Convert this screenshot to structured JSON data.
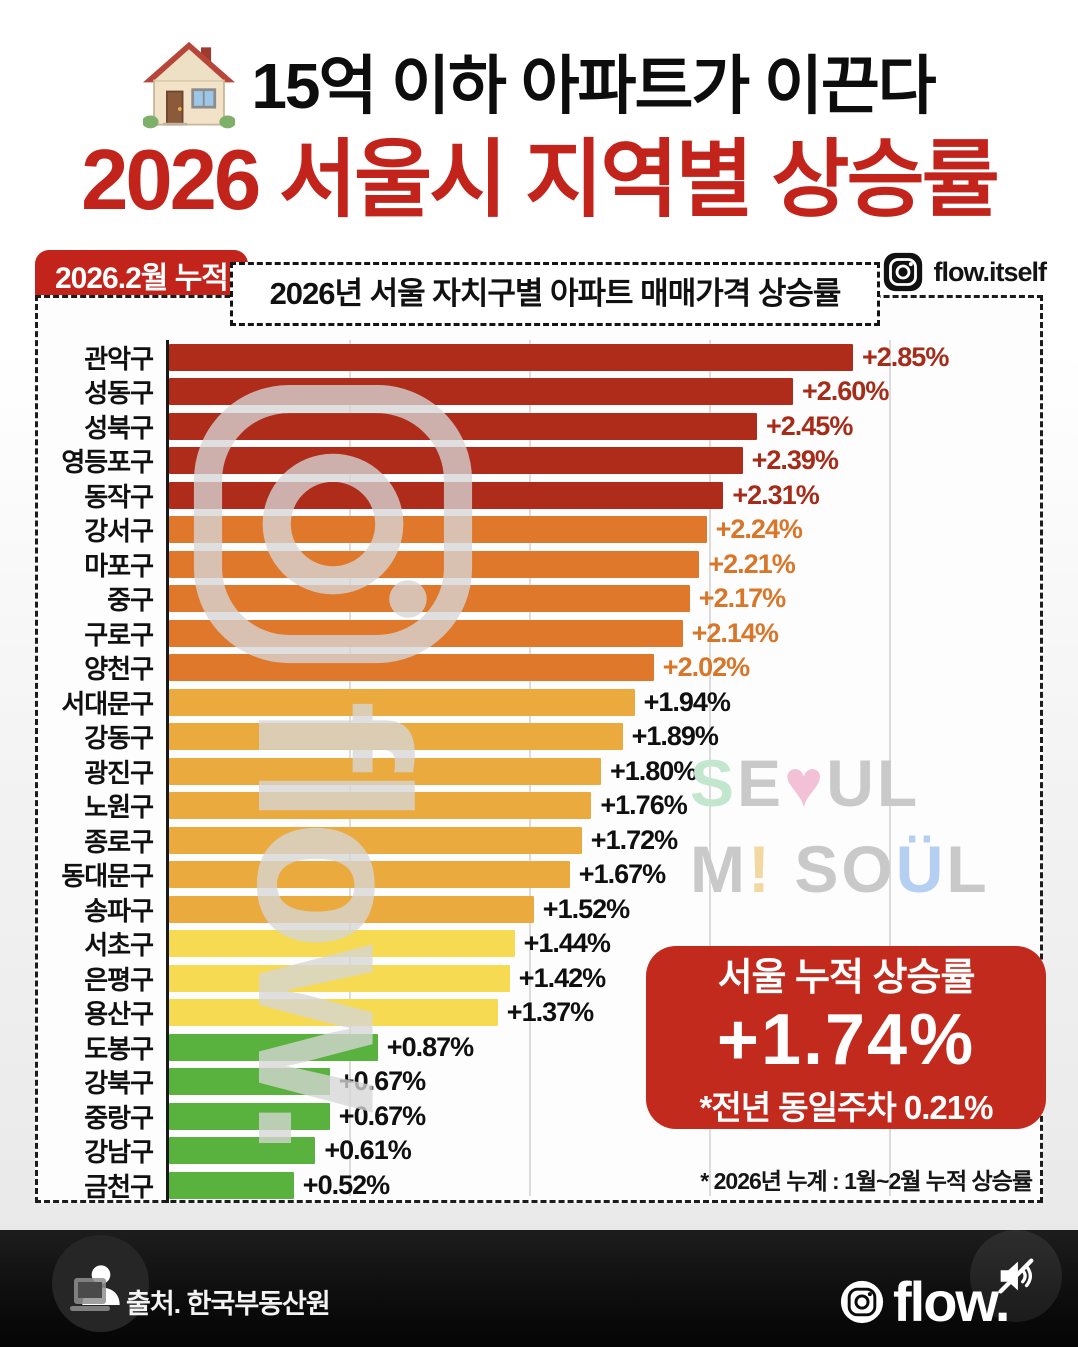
{
  "page": {
    "header_line1": "15억 이하 아파트가 이끈다",
    "header_line2": "2026 서울시 지역별 상승률",
    "badge": "2026.2월 누적",
    "instagram_handle": "flow.itself"
  },
  "chart_data": {
    "type": "bar",
    "orientation": "horizontal",
    "title": "2026년 서울 자치구별 아파트 매매가격 상승률",
    "unit": "%",
    "xlim": [
      0,
      3.65
    ],
    "gridlines": [
      0.75,
      1.5,
      2.25,
      3.0
    ],
    "footnote": "* 2026년 누계 :  1월~2월 누적 상승률",
    "rows": [
      {
        "label": "관악구",
        "value": 2.85,
        "display": "+2.85%",
        "bar_color": "dark_red",
        "value_color": "dark_red_text"
      },
      {
        "label": "성동구",
        "value": 2.6,
        "display": "+2.60%",
        "bar_color": "dark_red",
        "value_color": "dark_red_text"
      },
      {
        "label": "성북구",
        "value": 2.45,
        "display": "+2.45%",
        "bar_color": "dark_red",
        "value_color": "dark_red_text"
      },
      {
        "label": "영등포구",
        "value": 2.39,
        "display": "+2.39%",
        "bar_color": "dark_red",
        "value_color": "dark_red_text"
      },
      {
        "label": "동작구",
        "value": 2.31,
        "display": "+2.31%",
        "bar_color": "dark_red",
        "value_color": "dark_red_text"
      },
      {
        "label": "강서구",
        "value": 2.24,
        "display": "+2.24%",
        "bar_color": "orange",
        "value_color": "orange_text"
      },
      {
        "label": "마포구",
        "value": 2.21,
        "display": "+2.21%",
        "bar_color": "orange",
        "value_color": "orange_text"
      },
      {
        "label": "중구",
        "value": 2.17,
        "display": "+2.17%",
        "bar_color": "orange",
        "value_color": "orange_text"
      },
      {
        "label": "구로구",
        "value": 2.14,
        "display": "+2.14%",
        "bar_color": "orange",
        "value_color": "orange_text"
      },
      {
        "label": "양천구",
        "value": 2.02,
        "display": "+2.02%",
        "bar_color": "orange",
        "value_color": "orange_text"
      },
      {
        "label": "서대문구",
        "value": 1.94,
        "display": "+1.94%",
        "bar_color": "amber",
        "value_color": "black_text"
      },
      {
        "label": "강동구",
        "value": 1.89,
        "display": "+1.89%",
        "bar_color": "amber",
        "value_color": "black_text"
      },
      {
        "label": "광진구",
        "value": 1.8,
        "display": "+1.80%",
        "bar_color": "amber",
        "value_color": "black_text"
      },
      {
        "label": "노원구",
        "value": 1.76,
        "display": "+1.76%",
        "bar_color": "amber",
        "value_color": "black_text"
      },
      {
        "label": "종로구",
        "value": 1.72,
        "display": "+1.72%",
        "bar_color": "amber",
        "value_color": "black_text"
      },
      {
        "label": "동대문구",
        "value": 1.67,
        "display": "+1.67%",
        "bar_color": "amber",
        "value_color": "black_text"
      },
      {
        "label": "송파구",
        "value": 1.52,
        "display": "+1.52%",
        "bar_color": "amber",
        "value_color": "black_text"
      },
      {
        "label": "서초구",
        "value": 1.44,
        "display": "+1.44%",
        "bar_color": "yellow",
        "value_color": "black_text"
      },
      {
        "label": "은평구",
        "value": 1.42,
        "display": "+1.42%",
        "bar_color": "yellow",
        "value_color": "black_text"
      },
      {
        "label": "용산구",
        "value": 1.37,
        "display": "+1.37%",
        "bar_color": "yellow",
        "value_color": "black_text"
      },
      {
        "label": "도봉구",
        "value": 0.87,
        "display": "+0.87%",
        "bar_color": "green",
        "value_color": "black_text"
      },
      {
        "label": "강북구",
        "value": 0.67,
        "display": "+0.67%",
        "bar_color": "green",
        "value_color": "black_text"
      },
      {
        "label": "중랑구",
        "value": 0.67,
        "display": "+0.67%",
        "bar_color": "green",
        "value_color": "black_text"
      },
      {
        "label": "강남구",
        "value": 0.61,
        "display": "+0.61%",
        "bar_color": "green",
        "value_color": "black_text"
      },
      {
        "label": "금천구",
        "value": 0.52,
        "display": "+0.52%",
        "bar_color": "green",
        "value_color": "black_text"
      }
    ]
  },
  "palette": {
    "dark_red": "#AF2B1A",
    "orange": "#E0782B",
    "amber": "#EBAA3D",
    "yellow": "#F5DA52",
    "green": "#59B23E",
    "dark_red_text": "#A62C1A",
    "orange_text": "#D8762A",
    "black_text": "#101010",
    "accent_red": "#C3251D"
  },
  "summary_box": {
    "title": "서울 누적 상승률",
    "value": "+1.74%",
    "note": "*전년 동일주차 0.21%"
  },
  "watermarks": {
    "flow_text": "flow.",
    "seoul_colors": {
      "gray": "#C9C9C9",
      "mint": "#C3E6CF",
      "pink": "#F3C1D6",
      "paleyellow": "#F2D9A2",
      "blue": "#B4CFF2"
    },
    "seoul_line1": [
      [
        "S",
        "mint"
      ],
      [
        "E",
        "gray"
      ],
      [
        "♥",
        "pink"
      ],
      [
        "U",
        "gray"
      ],
      [
        "L",
        "gray"
      ]
    ],
    "seoul_line2": [
      [
        "M",
        "gray"
      ],
      [
        "!",
        "paleyellow"
      ],
      [
        " ",
        "gray"
      ],
      [
        "S",
        "gray"
      ],
      [
        "O",
        "gray"
      ],
      [
        "Ü",
        "blue"
      ],
      [
        "L",
        "gray"
      ]
    ]
  },
  "footer": {
    "source": "출처. 한국부동산원",
    "logo_text": "flow",
    "logo_dot": "."
  }
}
